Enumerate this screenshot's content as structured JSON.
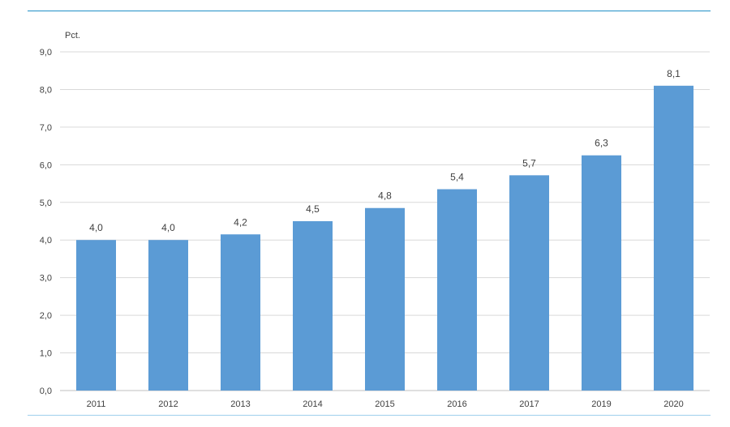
{
  "colors": {
    "bar": "#5b9bd5",
    "grid": "#d9d9d9",
    "axis": "#bfbfbf",
    "rule": "#1f8fc7",
    "rule_bottom": "#9fd0ec"
  },
  "chart_data": {
    "type": "bar",
    "ylabel": "Pct.",
    "categories": [
      "2011",
      "2012",
      "2013",
      "2014",
      "2015",
      "2016",
      "2017",
      "2019",
      "2020"
    ],
    "values": [
      4.0,
      4.0,
      4.15,
      4.5,
      4.85,
      5.35,
      5.72,
      6.25,
      8.1
    ],
    "data_labels": [
      "4,0",
      "4,0",
      "4,2",
      "4,5",
      "4,8",
      "5,4",
      "5,7",
      "6,3",
      "8,1"
    ],
    "y_ticks": [
      0,
      1,
      2,
      3,
      4,
      5,
      6,
      7,
      8,
      9
    ],
    "y_tick_labels": [
      "0,0",
      "1,0",
      "2,0",
      "3,0",
      "4,0",
      "5,0",
      "6,0",
      "7,0",
      "8,0",
      "9,0"
    ],
    "ylim": [
      0,
      9
    ],
    "grid": true,
    "legend": "none"
  }
}
